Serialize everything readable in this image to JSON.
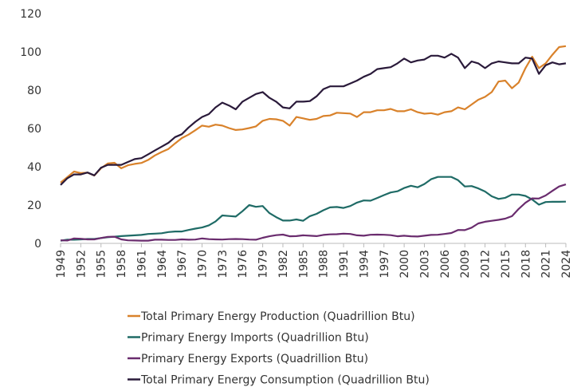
{
  "chart_data": {
    "type": "line",
    "x": [
      1949,
      1950,
      1951,
      1952,
      1953,
      1954,
      1955,
      1956,
      1957,
      1958,
      1959,
      1960,
      1961,
      1962,
      1963,
      1964,
      1965,
      1966,
      1967,
      1968,
      1969,
      1970,
      1971,
      1972,
      1973,
      1974,
      1975,
      1976,
      1977,
      1978,
      1979,
      1980,
      1981,
      1982,
      1983,
      1984,
      1985,
      1986,
      1987,
      1988,
      1989,
      1990,
      1991,
      1992,
      1993,
      1994,
      1995,
      1996,
      1997,
      1998,
      1999,
      2000,
      2001,
      2002,
      2003,
      2004,
      2005,
      2006,
      2007,
      2008,
      2009,
      2010,
      2011,
      2012,
      2013,
      2014,
      2015,
      2016,
      2017,
      2018,
      2019,
      2020,
      2021,
      2022,
      2023,
      2024
    ],
    "xlim": [
      1949,
      2024
    ],
    "xticks": [
      1949,
      1952,
      1955,
      1958,
      1961,
      1964,
      1967,
      1970,
      1973,
      1976,
      1979,
      1982,
      1985,
      1988,
      1991,
      1994,
      1997,
      2000,
      2003,
      2006,
      2009,
      2012,
      2015,
      2018,
      2021,
      2024
    ],
    "ylim": [
      0,
      120
    ],
    "yticks": [
      0,
      20,
      40,
      60,
      80,
      100,
      120
    ],
    "grid": false,
    "legend": "bottom",
    "series": [
      {
        "name": "Total Primary Energy Production (Quadrillion Btu)",
        "color": "#d9822b",
        "values": [
          31.7,
          34.6,
          37.5,
          36.7,
          36.9,
          35.4,
          39.2,
          41.7,
          42.1,
          39.2,
          40.8,
          41.5,
          42.0,
          43.6,
          45.9,
          47.7,
          49.3,
          52.2,
          55.0,
          56.8,
          59.1,
          61.5,
          60.9,
          62.0,
          61.5,
          60.2,
          59.2,
          59.5,
          60.2,
          61.1,
          64.0,
          65.0,
          64.8,
          64.0,
          61.5,
          66.0,
          65.3,
          64.5,
          65.0,
          66.5,
          66.8,
          68.2,
          68.0,
          67.8,
          66.0,
          68.5,
          68.5,
          69.5,
          69.5,
          70.2,
          69.0,
          69.0,
          70.0,
          68.5,
          67.7,
          68.0,
          67.2,
          68.5,
          69.0,
          71.0,
          70.0,
          72.5,
          75.0,
          76.5,
          79.0,
          84.5,
          85.0,
          81.0,
          84.0,
          91.5,
          97.5,
          91.5,
          94.0,
          98.5,
          102.5,
          103.0
        ]
      },
      {
        "name": "Primary Energy Imports (Quadrillion Btu)",
        "color": "#1f6b66",
        "values": [
          1.4,
          1.9,
          1.9,
          2.1,
          2.3,
          2.3,
          2.8,
          3.2,
          3.5,
          3.8,
          4.0,
          4.2,
          4.4,
          4.9,
          5.1,
          5.3,
          5.9,
          6.2,
          6.2,
          7.0,
          7.7,
          8.3,
          9.4,
          11.4,
          14.6,
          14.3,
          14.0,
          16.8,
          20.0,
          19.1,
          19.5,
          15.8,
          13.7,
          11.9,
          11.9,
          12.5,
          11.8,
          14.2,
          15.4,
          17.3,
          18.8,
          19.0,
          18.5,
          19.5,
          21.3,
          22.4,
          22.3,
          23.7,
          25.2,
          26.6,
          27.2,
          28.9,
          30.1,
          29.3,
          31.0,
          33.5,
          34.7,
          34.7,
          34.7,
          33.0,
          29.7,
          29.9,
          28.7,
          27.1,
          24.6,
          23.2,
          23.8,
          25.5,
          25.5,
          24.8,
          22.9,
          20.2,
          21.6,
          21.7,
          21.7,
          21.8
        ]
      },
      {
        "name": "Primary Energy Exports (Quadrillion Btu)",
        "color": "#6a2c6e",
        "values": [
          1.6,
          1.5,
          2.6,
          2.4,
          2.1,
          2.1,
          2.8,
          3.4,
          3.5,
          2.1,
          1.6,
          1.5,
          1.4,
          1.4,
          1.9,
          1.9,
          1.8,
          1.8,
          2.1,
          1.9,
          2.0,
          2.6,
          2.2,
          2.1,
          2.0,
          2.2,
          2.3,
          2.2,
          2.0,
          1.9,
          2.9,
          3.7,
          4.3,
          4.6,
          3.7,
          3.8,
          4.2,
          4.0,
          3.8,
          4.4,
          4.7,
          4.8,
          5.1,
          4.9,
          4.2,
          4.0,
          4.5,
          4.6,
          4.5,
          4.3,
          3.7,
          4.0,
          3.7,
          3.6,
          4.0,
          4.4,
          4.5,
          4.9,
          5.4,
          7.0,
          6.9,
          8.2,
          10.4,
          11.3,
          11.8,
          12.3,
          12.9,
          14.2,
          18.0,
          21.2,
          23.5,
          23.4,
          25.0,
          27.4,
          29.7,
          30.8
        ]
      },
      {
        "name": "Total Primary Energy Consumption (Quadrillion Btu)",
        "color": "#2a1a3a",
        "values": [
          30.5,
          34.0,
          36.0,
          36.0,
          37.0,
          35.5,
          39.5,
          41.0,
          41.0,
          41.0,
          42.5,
          44.0,
          44.5,
          46.5,
          48.5,
          50.5,
          52.5,
          55.5,
          57.0,
          60.5,
          63.5,
          66.0,
          67.5,
          71.0,
          73.5,
          72.0,
          70.0,
          74.0,
          76.0,
          78.0,
          79.0,
          76.0,
          74.0,
          71.0,
          70.5,
          74.0,
          74.0,
          74.3,
          76.8,
          80.5,
          82.0,
          82.0,
          82.0,
          83.5,
          85.0,
          87.0,
          88.5,
          91.0,
          91.5,
          92.0,
          94.0,
          96.5,
          94.5,
          95.5,
          96.0,
          98.0,
          98.0,
          97.0,
          99.0,
          97.0,
          91.5,
          95.0,
          94.0,
          91.5,
          94.0,
          95.0,
          94.5,
          94.0,
          94.0,
          97.0,
          96.5,
          88.5,
          93.0,
          94.5,
          93.5,
          94.0
        ]
      }
    ]
  }
}
